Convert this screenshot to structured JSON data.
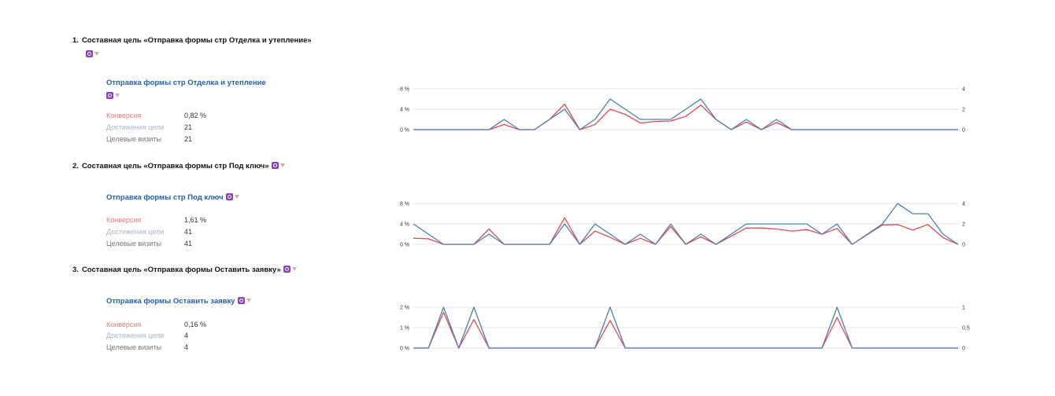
{
  "goals": [
    {
      "number": "1.",
      "title": "Составная цель «Отправка формы стр Отделка и утепление»",
      "sub_title": "Отправка формы стр Отделка и утепление",
      "metrics": [
        {
          "label": "Конверсия",
          "value": "0,82 %"
        },
        {
          "label": "Достижения цели",
          "value": "21"
        },
        {
          "label": "Целевые визиты",
          "value": "21"
        }
      ]
    },
    {
      "number": "2.",
      "title": "Составная цель «Отправка формы стр Под ключ»",
      "sub_title": "Отправка формы стр Под ключ",
      "metrics": [
        {
          "label": "Конверсия",
          "value": "1,61 %"
        },
        {
          "label": "Достижения цели",
          "value": "41"
        },
        {
          "label": "Целевые визиты",
          "value": "41"
        }
      ]
    },
    {
      "number": "3.",
      "title": "Составная цель «Отправка формы Оставить заявку»",
      "sub_title": "Отправка формы Оставить заявку",
      "metrics": [
        {
          "label": "Конверсия",
          "value": "0,16 %"
        },
        {
          "label": "Достижения цели",
          "value": "4"
        },
        {
          "label": "Целевые визиты",
          "value": "4"
        }
      ]
    }
  ],
  "colors": {
    "conversion": "#e04b50",
    "visits": "#4a7fb0",
    "grid": "#e6e6e6",
    "badge": "#8a3fc5"
  },
  "icons": {
    "counter_badge": "counter-badge-icon",
    "filter": "filter-icon"
  },
  "chart_data": [
    {
      "type": "line",
      "title": "",
      "left_axis": {
        "ticks": [
          "0 %",
          "4 %",
          "8 %"
        ],
        "range": [
          0,
          8
        ]
      },
      "right_axis": {
        "ticks": [
          "0",
          "2",
          "4"
        ],
        "range": [
          0,
          4
        ]
      },
      "grid": true,
      "series": [
        {
          "axis": "left",
          "color": "#e04b50",
          "values": [
            0,
            0,
            0,
            0,
            0,
            0,
            1,
            0,
            0,
            2,
            5,
            0,
            1,
            4,
            3,
            1.3,
            1.6,
            1.7,
            2.6,
            4.8,
            2,
            0,
            1.5,
            0,
            1.4,
            0,
            0,
            0,
            0,
            0,
            0,
            0,
            0,
            0,
            0,
            0,
            0
          ]
        },
        {
          "axis": "right",
          "color": "#4a7fb0",
          "values": [
            0,
            0,
            0,
            0,
            0,
            0,
            1,
            0,
            0,
            1,
            2,
            0,
            1,
            3,
            2,
            1,
            1,
            1,
            2,
            3,
            1,
            0,
            1,
            0,
            1,
            0,
            0,
            0,
            0,
            0,
            0,
            0,
            0,
            0,
            0,
            0,
            0
          ]
        }
      ]
    },
    {
      "type": "line",
      "title": "",
      "left_axis": {
        "ticks": [
          "0 %",
          "4 %",
          "8 %"
        ],
        "range": [
          0,
          8
        ]
      },
      "right_axis": {
        "ticks": [
          "0",
          "2",
          "4"
        ],
        "range": [
          0,
          4
        ]
      },
      "grid": true,
      "series": [
        {
          "axis": "left",
          "color": "#e04b50",
          "values": [
            1.2,
            1.1,
            0,
            0,
            0,
            3,
            0,
            0,
            0,
            0,
            5.2,
            0,
            2.6,
            1.4,
            0,
            1.2,
            0,
            3.5,
            0,
            1.5,
            0,
            1.6,
            3.2,
            3.2,
            3,
            2.6,
            2.9,
            2,
            3.1,
            0,
            1.9,
            3.8,
            3.9,
            2.8,
            3.9,
            1.3,
            0
          ]
        },
        {
          "axis": "right",
          "color": "#4a7fb0",
          "values": [
            2,
            1,
            0,
            0,
            0,
            1,
            0,
            0,
            0,
            0,
            2,
            0,
            2,
            1,
            0,
            1,
            0,
            2,
            0,
            1,
            0,
            1,
            2,
            2,
            2,
            2,
            2,
            1,
            2,
            0,
            1,
            2,
            4,
            3,
            3,
            1,
            0
          ]
        }
      ]
    },
    {
      "type": "line",
      "title": "",
      "left_axis": {
        "ticks": [
          "0 %",
          "1 %",
          "2 %"
        ],
        "range": [
          0,
          2
        ]
      },
      "right_axis": {
        "ticks": [
          "0",
          "0,5",
          "1"
        ],
        "range": [
          0,
          1
        ]
      },
      "grid": true,
      "series": [
        {
          "axis": "left",
          "color": "#e04b50",
          "values": [
            0,
            0,
            1.75,
            0,
            1.4,
            0,
            0,
            0,
            0,
            0,
            0,
            0,
            0,
            1.35,
            0,
            0,
            0,
            0,
            0,
            0,
            0,
            0,
            0,
            0,
            0,
            0,
            0,
            0,
            1.5,
            0,
            0,
            0,
            0,
            0,
            0,
            0,
            0
          ]
        },
        {
          "axis": "right",
          "color": "#4a7fb0",
          "values": [
            0,
            0,
            1,
            0,
            1,
            0,
            0,
            0,
            0,
            0,
            0,
            0,
            0,
            1,
            0,
            0,
            0,
            0,
            0,
            0,
            0,
            0,
            0,
            0,
            0,
            0,
            0,
            0,
            1,
            0,
            0,
            0,
            0,
            0,
            0,
            0,
            0
          ]
        }
      ]
    }
  ]
}
